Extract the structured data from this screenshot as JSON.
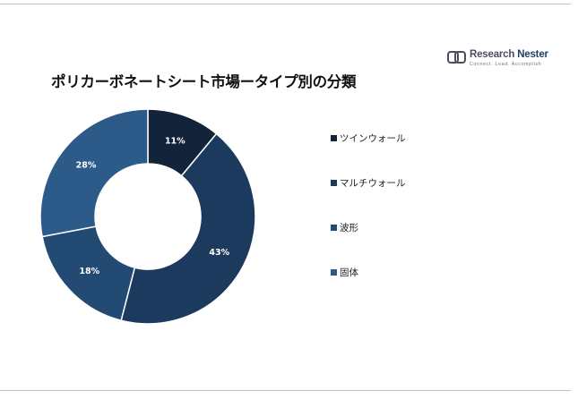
{
  "brand": {
    "name_part1": "Research ",
    "name_part2": "Nester",
    "tagline": "Connect. Lead. Accomplish"
  },
  "chart_data": {
    "type": "pie",
    "variant": "donut",
    "title": "ポリカーボネートシート市場ータイプ別の分類",
    "categories": [
      "ツインウォール",
      "マルチウォール",
      "波形",
      "固体"
    ],
    "values": [
      11,
      43,
      18,
      28
    ],
    "data_labels": [
      "11%",
      "43%",
      "18%",
      "28%"
    ],
    "colors": [
      "#13243a",
      "#1b3a5e",
      "#224a73",
      "#2c5b8a"
    ],
    "legend_position": "right",
    "start_angle_deg": 0,
    "direction": "clockwise"
  }
}
